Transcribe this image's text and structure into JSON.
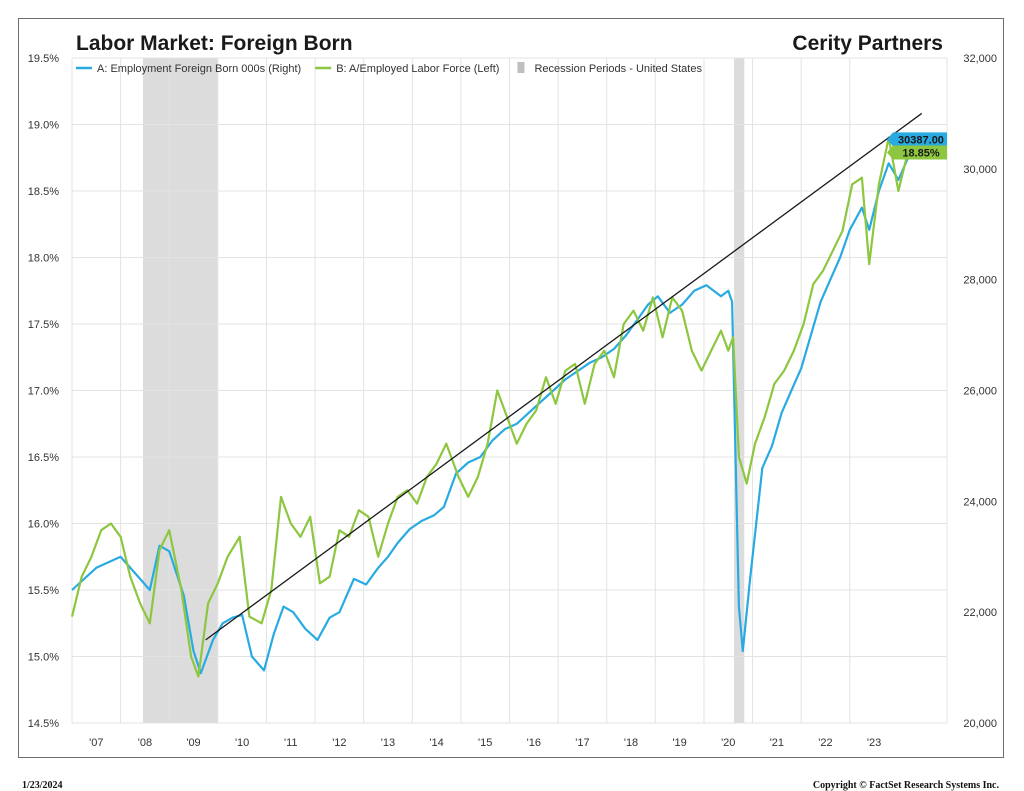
{
  "chart_data": {
    "type": "line",
    "title": "Labor Market: Foreign Born",
    "brand": "Cerity Partners",
    "footer_date": "1/23/2024",
    "copyright": "Copyright © FactSet Research Systems Inc.",
    "x_ticks": [
      "'07",
      "'08",
      "'09",
      "'10",
      "'11",
      "'12",
      "'13",
      "'14",
      "'15",
      "'16",
      "'17",
      "'18",
      "'19",
      "'20",
      "'21",
      "'22",
      "'23"
    ],
    "x_range": [
      2006.5,
      2024.5
    ],
    "left_axis": {
      "range": [
        14.5,
        19.5
      ],
      "ticks": [
        "14.5%",
        "15.0%",
        "15.5%",
        "16.0%",
        "16.5%",
        "17.0%",
        "17.5%",
        "18.0%",
        "18.5%",
        "19.0%",
        "19.5%"
      ]
    },
    "right_axis": {
      "range": [
        20000,
        32000
      ],
      "ticks": [
        "20,000",
        "22,000",
        "24,000",
        "26,000",
        "28,000",
        "30,000",
        "32,000"
      ]
    },
    "legend": [
      {
        "label": "A: Employment Foreign Born 000s    (Right)",
        "color": "#29abe2",
        "kind": "line"
      },
      {
        "label": "B: A/Employed Labor Force    (Left)",
        "color": "#8dc63f",
        "kind": "line"
      },
      {
        "label": "Recession Periods - United States",
        "color": "#bfbfbf",
        "kind": "box"
      }
    ],
    "recessions": [
      [
        2007.96,
        2009.5
      ],
      [
        2020.12,
        2020.33
      ]
    ],
    "trendline": {
      "x": [
        2009.25,
        2023.98
      ],
      "y_right": [
        21500,
        31000
      ]
    },
    "series": [
      {
        "name": "A: Employment Foreign Born 000s",
        "axis": "right",
        "color": "#29abe2",
        "end_label": "30387.00",
        "points": [
          [
            2006.5,
            22400
          ],
          [
            2007.0,
            22800
          ],
          [
            2007.5,
            23000
          ],
          [
            2007.9,
            22600
          ],
          [
            2008.1,
            22400
          ],
          [
            2008.3,
            23200
          ],
          [
            2008.5,
            23100
          ],
          [
            2008.8,
            22300
          ],
          [
            2009.0,
            21300
          ],
          [
            2009.15,
            20900
          ],
          [
            2009.4,
            21500
          ],
          [
            2009.6,
            21800
          ],
          [
            2009.8,
            21900
          ],
          [
            2010.0,
            21950
          ],
          [
            2010.2,
            21200
          ],
          [
            2010.45,
            20950
          ],
          [
            2010.65,
            21600
          ],
          [
            2010.85,
            22100
          ],
          [
            2011.05,
            22000
          ],
          [
            2011.3,
            21700
          ],
          [
            2011.55,
            21500
          ],
          [
            2011.8,
            21900
          ],
          [
            2012.0,
            22000
          ],
          [
            2012.3,
            22600
          ],
          [
            2012.55,
            22500
          ],
          [
            2012.8,
            22800
          ],
          [
            2013.0,
            23000
          ],
          [
            2013.2,
            23250
          ],
          [
            2013.45,
            23500
          ],
          [
            2013.7,
            23650
          ],
          [
            2013.95,
            23750
          ],
          [
            2014.15,
            23900
          ],
          [
            2014.4,
            24500
          ],
          [
            2014.65,
            24700
          ],
          [
            2014.9,
            24800
          ],
          [
            2015.15,
            25100
          ],
          [
            2015.4,
            25300
          ],
          [
            2015.65,
            25400
          ],
          [
            2015.9,
            25600
          ],
          [
            2016.15,
            25800
          ],
          [
            2016.4,
            26000
          ],
          [
            2016.65,
            26200
          ],
          [
            2016.9,
            26350
          ],
          [
            2017.15,
            26500
          ],
          [
            2017.4,
            26600
          ],
          [
            2017.65,
            26750
          ],
          [
            2017.9,
            27000
          ],
          [
            2018.15,
            27300
          ],
          [
            2018.35,
            27550
          ],
          [
            2018.55,
            27700
          ],
          [
            2018.8,
            27400
          ],
          [
            2019.05,
            27550
          ],
          [
            2019.3,
            27800
          ],
          [
            2019.55,
            27900
          ],
          [
            2019.85,
            27700
          ],
          [
            2020.0,
            27800
          ],
          [
            2020.08,
            27600
          ],
          [
            2020.22,
            22100
          ],
          [
            2020.3,
            21300
          ],
          [
            2020.45,
            22600
          ],
          [
            2020.7,
            24600
          ],
          [
            2020.9,
            25000
          ],
          [
            2021.1,
            25600
          ],
          [
            2021.3,
            26000
          ],
          [
            2021.5,
            26400
          ],
          [
            2021.7,
            27000
          ],
          [
            2021.9,
            27600
          ],
          [
            2022.1,
            28000
          ],
          [
            2022.3,
            28400
          ],
          [
            2022.5,
            28900
          ],
          [
            2022.75,
            29300
          ],
          [
            2022.9,
            28900
          ],
          [
            2023.1,
            29600
          ],
          [
            2023.3,
            30100
          ],
          [
            2023.5,
            29800
          ],
          [
            2023.7,
            30200
          ],
          [
            2023.85,
            30387
          ]
        ]
      },
      {
        "name": "B: A/Employed Labor Force",
        "axis": "left",
        "color": "#8dc63f",
        "end_label": "18.85%",
        "points": [
          [
            2006.5,
            15.3
          ],
          [
            2006.7,
            15.6
          ],
          [
            2006.9,
            15.75
          ],
          [
            2007.1,
            15.95
          ],
          [
            2007.3,
            16.0
          ],
          [
            2007.5,
            15.9
          ],
          [
            2007.7,
            15.6
          ],
          [
            2007.9,
            15.4
          ],
          [
            2008.1,
            15.25
          ],
          [
            2008.3,
            15.8
          ],
          [
            2008.5,
            15.95
          ],
          [
            2008.75,
            15.5
          ],
          [
            2008.95,
            15.0
          ],
          [
            2009.1,
            14.85
          ],
          [
            2009.3,
            15.4
          ],
          [
            2009.5,
            15.55
          ],
          [
            2009.7,
            15.75
          ],
          [
            2009.95,
            15.9
          ],
          [
            2010.15,
            15.3
          ],
          [
            2010.4,
            15.25
          ],
          [
            2010.6,
            15.5
          ],
          [
            2010.8,
            16.2
          ],
          [
            2011.0,
            16.0
          ],
          [
            2011.2,
            15.9
          ],
          [
            2011.4,
            16.05
          ],
          [
            2011.6,
            15.55
          ],
          [
            2011.8,
            15.6
          ],
          [
            2012.0,
            15.95
          ],
          [
            2012.2,
            15.9
          ],
          [
            2012.4,
            16.1
          ],
          [
            2012.6,
            16.05
          ],
          [
            2012.8,
            15.75
          ],
          [
            2013.0,
            16.0
          ],
          [
            2013.2,
            16.2
          ],
          [
            2013.4,
            16.25
          ],
          [
            2013.6,
            16.15
          ],
          [
            2013.8,
            16.35
          ],
          [
            2014.0,
            16.45
          ],
          [
            2014.2,
            16.6
          ],
          [
            2014.45,
            16.35
          ],
          [
            2014.65,
            16.2
          ],
          [
            2014.85,
            16.35
          ],
          [
            2015.05,
            16.6
          ],
          [
            2015.25,
            17.0
          ],
          [
            2015.45,
            16.8
          ],
          [
            2015.65,
            16.6
          ],
          [
            2015.85,
            16.75
          ],
          [
            2016.05,
            16.85
          ],
          [
            2016.25,
            17.1
          ],
          [
            2016.45,
            16.9
          ],
          [
            2016.65,
            17.15
          ],
          [
            2016.85,
            17.2
          ],
          [
            2017.05,
            16.9
          ],
          [
            2017.25,
            17.2
          ],
          [
            2017.45,
            17.3
          ],
          [
            2017.65,
            17.1
          ],
          [
            2017.85,
            17.5
          ],
          [
            2018.05,
            17.6
          ],
          [
            2018.25,
            17.45
          ],
          [
            2018.45,
            17.7
          ],
          [
            2018.65,
            17.4
          ],
          [
            2018.85,
            17.7
          ],
          [
            2019.05,
            17.6
          ],
          [
            2019.25,
            17.3
          ],
          [
            2019.45,
            17.15
          ],
          [
            2019.65,
            17.3
          ],
          [
            2019.85,
            17.45
          ],
          [
            2020.0,
            17.3
          ],
          [
            2020.1,
            17.4
          ],
          [
            2020.22,
            16.5
          ],
          [
            2020.38,
            16.3
          ],
          [
            2020.55,
            16.6
          ],
          [
            2020.75,
            16.8
          ],
          [
            2020.95,
            17.05
          ],
          [
            2021.15,
            17.15
          ],
          [
            2021.35,
            17.3
          ],
          [
            2021.55,
            17.5
          ],
          [
            2021.75,
            17.8
          ],
          [
            2021.95,
            17.9
          ],
          [
            2022.15,
            18.05
          ],
          [
            2022.35,
            18.2
          ],
          [
            2022.55,
            18.55
          ],
          [
            2022.75,
            18.6
          ],
          [
            2022.9,
            17.95
          ],
          [
            2023.1,
            18.55
          ],
          [
            2023.3,
            18.9
          ],
          [
            2023.5,
            18.5
          ],
          [
            2023.7,
            18.8
          ],
          [
            2023.85,
            18.85
          ]
        ]
      }
    ]
  }
}
